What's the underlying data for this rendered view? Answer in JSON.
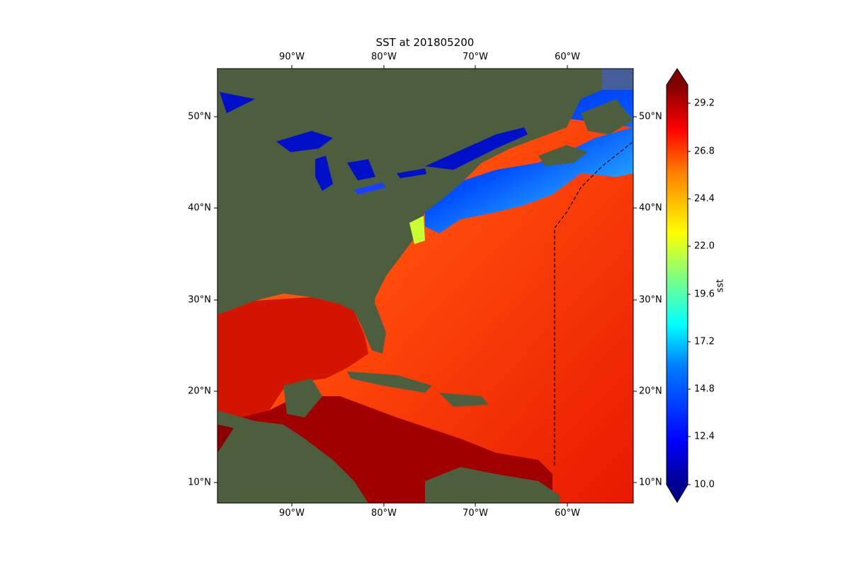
{
  "title": "SST at 201805200",
  "map": {
    "x_ticks": [
      "90°W",
      "80°W",
      "70°W",
      "60°W"
    ],
    "y_ticks": [
      "50°N",
      "40°N",
      "30°N",
      "20°N",
      "10°N"
    ],
    "boundary_line": "dashed"
  },
  "colorbar": {
    "label": "sst",
    "ticks": [
      "29.2",
      "26.8",
      "24.4",
      "22.0",
      "19.6",
      "17.2",
      "14.8",
      "12.4",
      "10.0"
    ],
    "extend": "both",
    "colormap": [
      "#00008f",
      "#0000ff",
      "#0080ff",
      "#00ffff",
      "#80ff80",
      "#ffff00",
      "#ff8000",
      "#ff0000",
      "#800000"
    ]
  },
  "colors": {
    "land": "#4a5a3c",
    "cold_water": "#0010c8",
    "warm_water": "#ff5a10",
    "hot_water": "#b80000"
  }
}
